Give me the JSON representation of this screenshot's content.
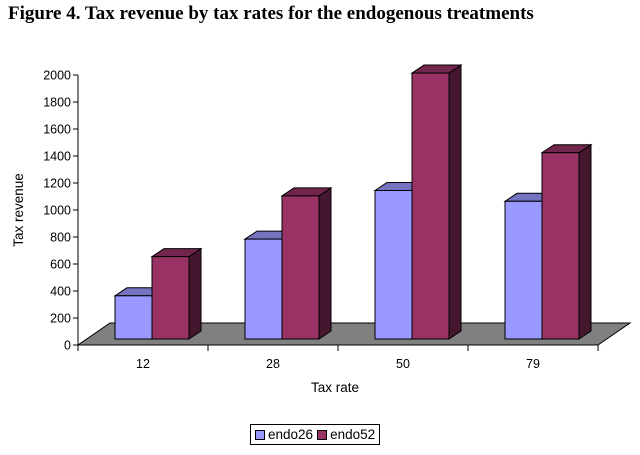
{
  "title": "Figure 4. Tax revenue by tax rates for the endogenous treatments",
  "chart_data": {
    "type": "bar",
    "style": "3d-clustered-column",
    "title": "Figure 4. Tax revenue by tax rates for the endogenous treatments",
    "xlabel": "Tax rate",
    "ylabel": "Tax revenue",
    "categories": [
      "12",
      "28",
      "50",
      "79"
    ],
    "series": [
      {
        "name": "endo26",
        "values": [
          320,
          740,
          1100,
          1020
        ],
        "color": "#9999ff"
      },
      {
        "name": "endo52",
        "values": [
          610,
          1060,
          1970,
          1380
        ],
        "color": "#993366"
      }
    ],
    "ylim": [
      0,
      2000
    ],
    "yticks": [
      0,
      200,
      400,
      600,
      800,
      1000,
      1200,
      1400,
      1600,
      1800,
      2000
    ],
    "grid": false,
    "floor_color": "#808080",
    "legend_position": "bottom"
  }
}
